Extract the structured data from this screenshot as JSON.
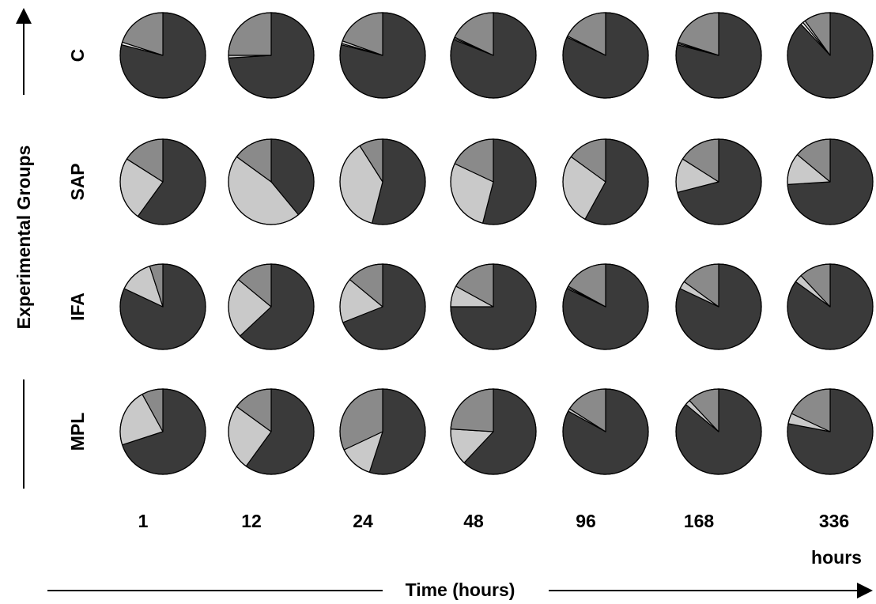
{
  "chart_data": {
    "type": "pie",
    "y_axis_title": "Experimental Groups",
    "x_axis_title": "Time (hours)",
    "units_label": "hours",
    "rows": [
      "C",
      "SAP",
      "IFA",
      "MPL"
    ],
    "columns": [
      "1",
      "12",
      "24",
      "48",
      "96",
      "168",
      "336"
    ],
    "slice_colors": [
      "#3a3a3a",
      "#ececec",
      "#c9c9c9",
      "#8a8a8a"
    ],
    "slice_order_note": "",
    "pies": [
      [
        [
          0.79,
          0.01,
          0.0,
          0.2
        ],
        [
          0.74,
          0.0,
          0.01,
          0.25
        ],
        [
          0.79,
          0.005,
          0.01,
          0.195
        ],
        [
          0.81,
          0.005,
          0.005,
          0.18
        ],
        [
          0.82,
          0.0,
          0.005,
          0.175
        ],
        [
          0.79,
          0.005,
          0.005,
          0.2
        ],
        [
          0.88,
          0.01,
          0.01,
          0.1
        ]
      ],
      [
        [
          0.6,
          0.0,
          0.24,
          0.16
        ],
        [
          0.39,
          0.0,
          0.46,
          0.15
        ],
        [
          0.54,
          0.0,
          0.37,
          0.09
        ],
        [
          0.54,
          0.0,
          0.28,
          0.18
        ],
        [
          0.58,
          0.0,
          0.27,
          0.15
        ],
        [
          0.71,
          0.0,
          0.13,
          0.16
        ],
        [
          0.74,
          0.0,
          0.12,
          0.14
        ]
      ],
      [
        [
          0.82,
          0.0,
          0.13,
          0.05
        ],
        [
          0.63,
          0.0,
          0.23,
          0.14
        ],
        [
          0.69,
          0.0,
          0.17,
          0.14
        ],
        [
          0.75,
          0.0,
          0.08,
          0.17
        ],
        [
          0.82,
          0.005,
          0.005,
          0.17
        ],
        [
          0.82,
          0.0,
          0.03,
          0.15
        ],
        [
          0.85,
          0.0,
          0.03,
          0.12
        ]
      ],
      [
        [
          0.7,
          0.0,
          0.22,
          0.08
        ],
        [
          0.6,
          0.0,
          0.25,
          0.15
        ],
        [
          0.55,
          0.0,
          0.13,
          0.32
        ],
        [
          0.62,
          0.0,
          0.14,
          0.24
        ],
        [
          0.83,
          0.0,
          0.01,
          0.16
        ],
        [
          0.86,
          0.0,
          0.02,
          0.12
        ],
        [
          0.78,
          0.0,
          0.04,
          0.18
        ]
      ]
    ]
  }
}
